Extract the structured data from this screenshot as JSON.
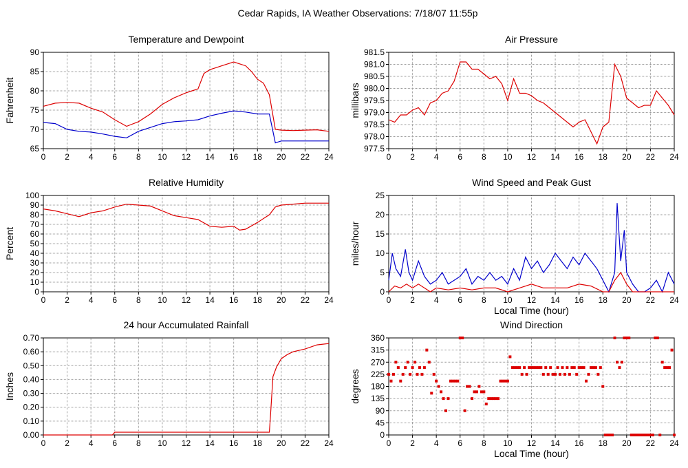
{
  "page_title": "Cedar Rapids, IA Weather Observations: 7/18/07 11:55p",
  "colors": {
    "red": "#dd0000",
    "blue": "#0000cc",
    "grid": "#999999"
  },
  "chart_data": [
    {
      "type": "line",
      "title": "Temperature and Dewpoint",
      "ylabel": "Fahrenheit",
      "xlabel": "",
      "xlim": [
        0,
        24
      ],
      "ylim": [
        65,
        90
      ],
      "x_ticks": [
        "0",
        "2",
        "4",
        "6",
        "8",
        "10",
        "12",
        "14",
        "16",
        "18",
        "20",
        "22",
        "24"
      ],
      "y_ticks": [
        "65",
        "70",
        "75",
        "80",
        "85",
        "90"
      ],
      "grid": true,
      "series": [
        {
          "color": "#dd0000",
          "x": [
            0,
            1,
            2,
            3,
            4,
            5,
            6,
            7,
            8,
            9,
            10,
            11,
            12,
            12.5,
            13,
            13.5,
            14,
            14.5,
            15,
            15.5,
            16,
            16.5,
            17,
            17.5,
            18,
            18.5,
            19,
            19.5,
            20,
            21,
            22,
            23,
            24
          ],
          "y": [
            76,
            76.8,
            77,
            76.8,
            75.5,
            74.5,
            72.5,
            70.8,
            72,
            74,
            76.5,
            78.2,
            79.5,
            80,
            80.5,
            84.5,
            85.5,
            86,
            86.5,
            87,
            87.5,
            87,
            86.5,
            85,
            83,
            82,
            79,
            70,
            69.8,
            69.7,
            69.8,
            69.9,
            69.5
          ]
        },
        {
          "color": "#0000cc",
          "x": [
            0,
            1,
            2,
            3,
            4,
            5,
            6,
            7,
            8,
            9,
            10,
            11,
            12,
            13,
            14,
            15,
            16,
            17,
            18,
            19,
            19.5,
            20,
            21,
            22,
            23,
            24
          ],
          "y": [
            71.8,
            71.5,
            70,
            69.5,
            69.3,
            68.8,
            68.2,
            67.8,
            69.5,
            70.5,
            71.5,
            72,
            72.2,
            72.5,
            73.5,
            74.2,
            74.8,
            74.5,
            74,
            74,
            66.5,
            67,
            67,
            67,
            67,
            67
          ]
        }
      ]
    },
    {
      "type": "line",
      "title": "Air Pressure",
      "ylabel": "millibars",
      "xlabel": "",
      "xlim": [
        0,
        24
      ],
      "ylim": [
        977.5,
        981.5
      ],
      "x_ticks": [
        "0",
        "2",
        "4",
        "6",
        "8",
        "10",
        "12",
        "14",
        "16",
        "18",
        "20",
        "22",
        "24"
      ],
      "y_ticks": [
        "977.5",
        "978.0",
        "978.5",
        "979.0",
        "979.5",
        "980.0",
        "980.5",
        "981.0",
        "981.5"
      ],
      "grid": true,
      "series": [
        {
          "color": "#dd0000",
          "x": [
            0,
            0.5,
            1,
            1.5,
            2,
            2.5,
            3,
            3.5,
            4,
            4.5,
            5,
            5.5,
            6,
            6.5,
            7,
            7.5,
            8,
            8.5,
            9,
            9.5,
            10,
            10.5,
            11,
            11.5,
            12,
            12.5,
            13,
            13.5,
            14,
            14.5,
            15,
            15.5,
            16,
            16.5,
            17,
            17.5,
            18,
            18.5,
            19,
            19.5,
            20,
            20.5,
            21,
            21.5,
            22,
            22.5,
            23,
            23.5,
            24
          ],
          "y": [
            978.7,
            978.6,
            978.9,
            978.9,
            979.1,
            979.2,
            978.9,
            979.4,
            979.5,
            979.8,
            979.9,
            980.3,
            981.1,
            981.1,
            980.8,
            980.8,
            980.6,
            980.4,
            980.5,
            980.2,
            979.5,
            980.4,
            979.8,
            979.8,
            979.7,
            979.5,
            979.4,
            979.2,
            979.0,
            978.8,
            978.6,
            978.4,
            978.6,
            978.7,
            978.2,
            977.7,
            978.4,
            978.6,
            981.0,
            980.5,
            979.6,
            979.4,
            979.2,
            979.3,
            979.3,
            979.9,
            979.6,
            979.3,
            978.9
          ]
        }
      ]
    },
    {
      "type": "line",
      "title": "Relative Humidity",
      "ylabel": "Percent",
      "xlabel": "",
      "xlim": [
        0,
        24
      ],
      "ylim": [
        0,
        100
      ],
      "x_ticks": [
        "0",
        "2",
        "4",
        "6",
        "8",
        "10",
        "12",
        "14",
        "16",
        "18",
        "20",
        "22",
        "24"
      ],
      "y_ticks": [
        "0",
        "10",
        "20",
        "30",
        "40",
        "50",
        "60",
        "70",
        "80",
        "90",
        "100"
      ],
      "grid": true,
      "series": [
        {
          "color": "#dd0000",
          "x": [
            0,
            1,
            2,
            3,
            4,
            5,
            6,
            7,
            8,
            9,
            10,
            11,
            12,
            13,
            14,
            15,
            16,
            16.5,
            17,
            18,
            19,
            19.5,
            20,
            21,
            22,
            23,
            24
          ],
          "y": [
            86,
            84,
            81,
            78,
            82,
            84,
            88,
            91,
            90,
            89,
            84,
            79,
            77,
            75,
            68,
            67,
            68,
            64,
            65,
            72,
            80,
            88,
            90,
            91,
            92,
            92,
            92
          ]
        }
      ]
    },
    {
      "type": "line",
      "title": "Wind Speed and Peak Gust",
      "ylabel": "miles/hour",
      "xlabel": "Local Time (hour)",
      "xlim": [
        0,
        24
      ],
      "ylim": [
        0,
        25
      ],
      "x_ticks": [
        "0",
        "2",
        "4",
        "6",
        "8",
        "10",
        "12",
        "14",
        "16",
        "18",
        "20",
        "22",
        "24"
      ],
      "y_ticks": [
        "0",
        "5",
        "10",
        "15",
        "20",
        "25"
      ],
      "grid": true,
      "series": [
        {
          "color": "#0000cc",
          "x": [
            0,
            0.3,
            0.6,
            1,
            1.4,
            1.7,
            2,
            2.5,
            3,
            3.5,
            4,
            4.5,
            5,
            5.5,
            6,
            6.5,
            7,
            7.5,
            8,
            8.5,
            9,
            9.5,
            10,
            10.5,
            11,
            11.5,
            12,
            12.5,
            13,
            13.5,
            14,
            14.5,
            15,
            15.5,
            16,
            16.5,
            17,
            17.5,
            18,
            18.5,
            19,
            19.2,
            19.5,
            19.8,
            20,
            20.5,
            21,
            21.5,
            22,
            22.5,
            23,
            23.5,
            24
          ],
          "y": [
            3,
            10,
            6,
            4,
            11,
            5,
            3,
            8,
            4,
            2,
            3,
            5,
            2,
            3,
            4,
            6,
            2,
            4,
            3,
            5,
            3,
            4,
            2,
            6,
            3,
            9,
            6,
            8,
            5,
            7,
            10,
            8,
            6,
            9,
            7,
            10,
            8,
            6,
            3,
            0,
            5,
            23,
            8,
            16,
            5,
            2,
            0,
            0,
            1,
            3,
            0,
            5,
            2
          ]
        },
        {
          "color": "#dd0000",
          "x": [
            0,
            0.5,
            1,
            1.5,
            2,
            2.5,
            3,
            3.5,
            4,
            5,
            6,
            7,
            8,
            9,
            10,
            11,
            12,
            13,
            14,
            15,
            16,
            17,
            18,
            18.5,
            19,
            19.5,
            20,
            20.5,
            21,
            22,
            23,
            24
          ],
          "y": [
            0,
            1.5,
            1,
            2,
            1,
            2,
            1,
            0,
            1,
            0.5,
            1,
            0.5,
            1,
            1,
            0,
            1,
            2,
            1,
            1,
            1,
            2,
            1.5,
            0,
            0,
            3,
            5,
            2,
            0,
            0,
            0,
            0,
            0
          ]
        }
      ]
    },
    {
      "type": "line",
      "title": "24 hour Accumulated Rainfall",
      "ylabel": "Inches",
      "xlabel": "",
      "xlim": [
        0,
        24
      ],
      "ylim": [
        0,
        0.7
      ],
      "x_ticks": [
        "0",
        "2",
        "4",
        "6",
        "8",
        "10",
        "12",
        "14",
        "16",
        "18",
        "20",
        "22",
        "24"
      ],
      "y_ticks": [
        "0.00",
        "0.10",
        "0.20",
        "0.30",
        "0.40",
        "0.50",
        "0.60",
        "0.70"
      ],
      "grid": true,
      "series": [
        {
          "color": "#dd0000",
          "x": [
            0,
            5.8,
            6.0,
            19.0,
            19.1,
            19.3,
            19.6,
            20,
            20.5,
            21,
            22,
            23,
            24
          ],
          "y": [
            0,
            0,
            0.02,
            0.02,
            0.15,
            0.42,
            0.49,
            0.55,
            0.58,
            0.6,
            0.62,
            0.65,
            0.66
          ]
        }
      ]
    },
    {
      "type": "scatter",
      "title": "Wind Direction",
      "ylabel": "degrees",
      "xlabel": "Local Time (hour)",
      "xlim": [
        0,
        24
      ],
      "ylim": [
        0,
        360
      ],
      "x_ticks": [
        "0",
        "2",
        "4",
        "6",
        "8",
        "10",
        "12",
        "14",
        "16",
        "18",
        "20",
        "22",
        "24"
      ],
      "y_ticks": [
        "0",
        "45",
        "90",
        "135",
        "180",
        "225",
        "270",
        "315",
        "360"
      ],
      "grid": true,
      "series": [
        {
          "color": "#dd0000",
          "x": [
            0,
            0.2,
            0.4,
            0.6,
            0.8,
            1,
            1.2,
            1.4,
            1.6,
            1.8,
            2,
            2.2,
            2.4,
            2.6,
            2.8,
            3,
            3.2,
            3.4,
            3.6,
            3.8,
            4,
            4.2,
            4.4,
            4.6,
            4.8,
            5,
            5.2,
            5.4,
            5.6,
            5.8,
            6,
            6.2,
            6.4,
            6.6,
            6.8,
            7,
            7.2,
            7.4,
            7.6,
            7.8,
            8,
            8.2,
            8.4,
            8.6,
            8.8,
            9,
            9.2,
            9.4,
            9.6,
            9.8,
            10,
            10.2,
            10.4,
            10.6,
            10.8,
            11,
            11.2,
            11.4,
            11.6,
            11.8,
            12,
            12.2,
            12.4,
            12.6,
            12.8,
            13,
            13.2,
            13.4,
            13.6,
            13.8,
            14,
            14.2,
            14.4,
            14.6,
            14.8,
            15,
            15.2,
            15.4,
            15.6,
            15.8,
            16,
            16.2,
            16.4,
            16.6,
            16.8,
            17,
            17.2,
            17.4,
            17.6,
            17.8,
            18,
            18.2,
            18.4,
            18.6,
            18.8,
            19,
            19.2,
            19.4,
            19.6,
            19.8,
            20,
            20.2,
            20.4,
            20.6,
            20.8,
            21,
            21.2,
            21.4,
            21.6,
            21.8,
            22,
            22.2,
            22.4,
            22.6,
            22.8,
            23,
            23.2,
            23.4,
            23.6,
            23.8,
            24
          ],
          "y": [
            225,
            200,
            225,
            270,
            250,
            200,
            225,
            250,
            270,
            225,
            250,
            270,
            225,
            250,
            225,
            250,
            315,
            270,
            155,
            225,
            200,
            180,
            160,
            135,
            90,
            135,
            200,
            200,
            200,
            200,
            360,
            360,
            90,
            180,
            180,
            135,
            160,
            160,
            180,
            160,
            160,
            115,
            135,
            135,
            135,
            135,
            135,
            200,
            200,
            200,
            200,
            290,
            250,
            250,
            250,
            250,
            225,
            250,
            225,
            250,
            250,
            250,
            250,
            250,
            250,
            225,
            250,
            225,
            250,
            225,
            225,
            250,
            225,
            250,
            225,
            250,
            225,
            250,
            250,
            225,
            250,
            250,
            250,
            200,
            225,
            250,
            250,
            250,
            225,
            250,
            180,
            0,
            0,
            0,
            0,
            360,
            270,
            250,
            270,
            360,
            360,
            360,
            0,
            0,
            0,
            0,
            0,
            0,
            0,
            0,
            0,
            0,
            360,
            360,
            0,
            270,
            250,
            250,
            250,
            315,
            0
          ]
        }
      ]
    }
  ]
}
